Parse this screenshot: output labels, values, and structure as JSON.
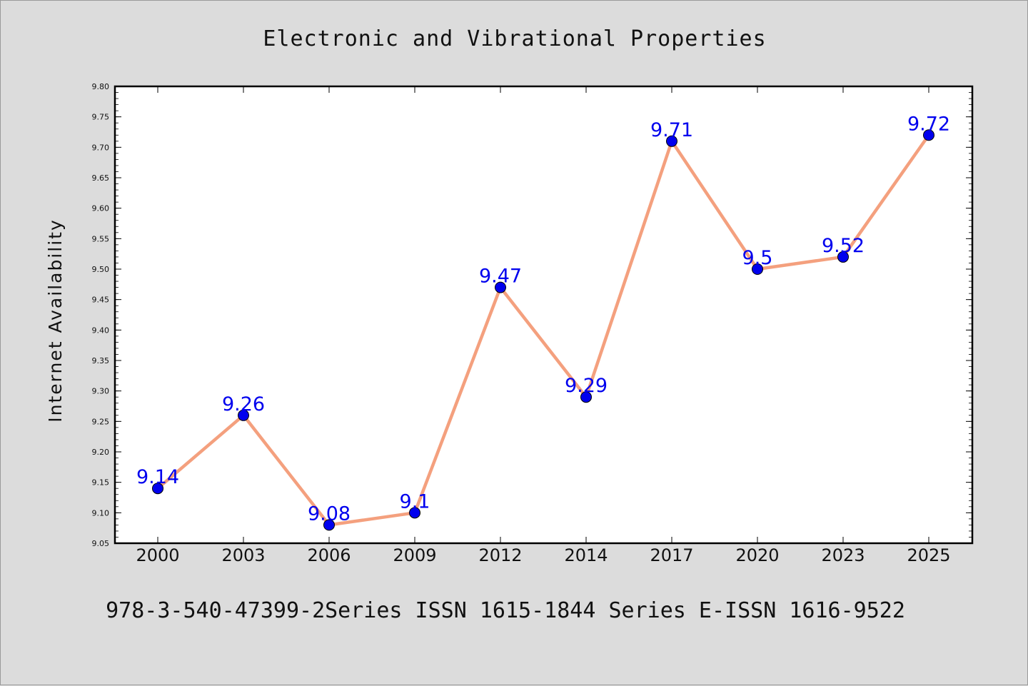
{
  "chart_data": {
    "type": "line",
    "title": "Electronic and Vibrational Properties",
    "xlabel": "",
    "ylabel": "Internet Availability",
    "categories": [
      "2000",
      "2003",
      "2006",
      "2009",
      "2012",
      "2014",
      "2017",
      "2020",
      "2023",
      "2025"
    ],
    "series": [
      {
        "values": [
          9.14,
          9.26,
          9.08,
          9.1,
          9.47,
          9.29,
          9.71,
          9.5,
          9.52,
          9.72
        ],
        "labels": [
          "9.14",
          "9.26",
          "9.08",
          "9.1",
          "9.47",
          "9.29",
          "9.71",
          "9.5",
          "9.52",
          "9.72"
        ],
        "line_color": "#f4a07e",
        "marker_color": "#0000ee",
        "label_color": "#0000ee"
      }
    ],
    "ylim": [
      9.05,
      9.8
    ],
    "yticks": [
      "9.05",
      "9.10",
      "9.15",
      "9.20",
      "9.25",
      "9.30",
      "9.35",
      "9.40",
      "9.45",
      "9.50",
      "9.55",
      "9.60",
      "9.65",
      "9.70",
      "9.75",
      "9.80"
    ],
    "grid": false,
    "legend": "none"
  },
  "footer": {
    "text": "978-3-540-47399-2Series ISSN 1615-1844 Series E-ISSN 1616-9522"
  }
}
